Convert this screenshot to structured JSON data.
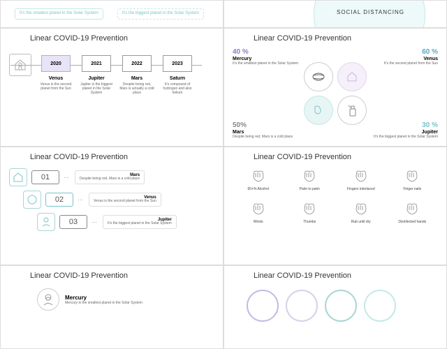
{
  "colors": {
    "teal": "#7ac5c5",
    "purple": "#8b7bc7",
    "gray": "#888",
    "light_teal": "#c5e8e8",
    "light_purple": "#e8e4f5",
    "border": "#ddd",
    "bg": "#ffffff"
  },
  "section_title": "Linear COVID-19 Prevention",
  "top": {
    "pill1": "It's the smallest planet in the Solar System",
    "pill2": "It's the biggest planet in the Solar System",
    "social_distancing": "SOCIAL DISTANCING"
  },
  "timeline": {
    "years": [
      {
        "year": "2020",
        "name": "Venus",
        "desc": "Venus is the second planet from the Sun",
        "active": true,
        "color": "#8b7bc7"
      },
      {
        "year": "2021",
        "name": "Jupiter",
        "desc": "Jupiter is the biggest planet in the Solar System",
        "active": false,
        "color": "#888"
      },
      {
        "year": "2022",
        "name": "Mars",
        "desc": "Despite being red, Mars is actually a cold place",
        "active": false,
        "color": "#888"
      },
      {
        "year": "2023",
        "name": "Saturn",
        "desc": "It's composed of hydrogen and also helium",
        "active": false,
        "color": "#888"
      }
    ]
  },
  "quad": {
    "topleft": {
      "pct": "40 %",
      "name": "Mercury",
      "desc": "It's the smallest planet in the Solar System",
      "color": "#8b7bc7"
    },
    "topright": {
      "pct": "60 %",
      "name": "Venus",
      "desc": "It's the second planet from the Sun",
      "color": "#5aa8c8"
    },
    "bottomleft": {
      "pct": "50%",
      "name": "Mars",
      "desc": "Despite being red, Mars is a cold place",
      "color": "#888"
    },
    "bottomright": {
      "pct": "30 %",
      "name": "Jupiter",
      "desc": "It's the biggest planet in the Solar System",
      "color": "#7ac5c5"
    }
  },
  "steps": [
    {
      "num": "01",
      "name": "Mars",
      "desc": "Despite being red, Mars is a cold place",
      "color": "#888"
    },
    {
      "num": "02",
      "name": "Venus",
      "desc": "Venus is the second planet from the Sun",
      "color": "#7ac5c5"
    },
    {
      "num": "03",
      "name": "Jupiter",
      "desc": "It's the biggest planet in the Solar System",
      "color": "#888"
    }
  ],
  "handwash": {
    "row1": [
      {
        "label": "60+% Alcohol"
      },
      {
        "label": "Palm to palm"
      },
      {
        "label": "Fingers interlaced"
      },
      {
        "label": "Finger nails"
      }
    ],
    "row2": [
      {
        "label": "Wrists"
      },
      {
        "label": "Thumbs"
      },
      {
        "label": "Rub until dry"
      },
      {
        "label": "Disinfected hands"
      }
    ]
  },
  "bottom_left": {
    "name": "Mercury",
    "desc": "Mercury is the smallest planet in the Solar System"
  },
  "circle_colors": [
    "#c5b8e8",
    "#d8d0e8",
    "#a8d5d5",
    "#c5e8e8"
  ]
}
